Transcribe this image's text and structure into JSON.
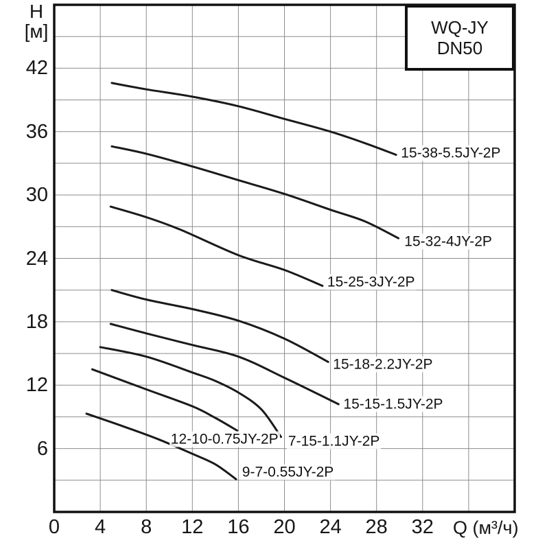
{
  "legend": {
    "line1": "WQ-JY",
    "line2": "DN50"
  },
  "axes": {
    "y_title_line1": "H",
    "y_title_line2": "[м]",
    "x_title": "Q (м³/ч)"
  },
  "colors": {
    "curve": "#1a1a1a",
    "grid": "#8c8c8c",
    "border": "#111111",
    "text": "#161616",
    "background": "#ffffff"
  },
  "chart_data": {
    "type": "line",
    "title": "WQ-JY DN50",
    "xlabel": "Q (м³/ч)",
    "ylabel": "H [м]",
    "xlim": [
      0,
      40
    ],
    "ylim": [
      0,
      48
    ],
    "x_ticks": [
      0,
      4,
      8,
      12,
      16,
      20,
      24,
      28,
      32
    ],
    "y_ticks": [
      6,
      12,
      18,
      24,
      30,
      36,
      42
    ],
    "x_grid_step": 4,
    "y_grid_step": 3,
    "grid": true,
    "legend_position": "top-right",
    "series": [
      {
        "name": "15-38-5.5JY-2P",
        "points": [
          [
            5,
            40.6
          ],
          [
            8,
            40.0
          ],
          [
            12,
            39.3
          ],
          [
            16,
            38.4
          ],
          [
            20,
            37.2
          ],
          [
            24,
            36.0
          ],
          [
            27,
            34.9
          ],
          [
            29.7,
            33.8
          ]
        ],
        "label_at": [
          30.0,
          34.0
        ]
      },
      {
        "name": "15-32-4JY-2P",
        "points": [
          [
            5,
            34.6
          ],
          [
            8,
            33.9
          ],
          [
            12,
            32.7
          ],
          [
            16,
            31.4
          ],
          [
            20,
            30.1
          ],
          [
            24,
            28.6
          ],
          [
            27,
            27.5
          ],
          [
            29.9,
            25.9
          ]
        ],
        "label_at": [
          30.3,
          25.6
        ]
      },
      {
        "name": "15-25-3JY-2P",
        "points": [
          [
            4.9,
            28.9
          ],
          [
            8,
            27.9
          ],
          [
            11,
            26.7
          ],
          [
            16,
            24.3
          ],
          [
            20,
            22.9
          ],
          [
            23.3,
            21.4
          ]
        ],
        "label_at": [
          23.6,
          21.75
        ]
      },
      {
        "name": "15-18-2.2JY-2P",
        "points": [
          [
            5,
            21.0
          ],
          [
            8,
            20.1
          ],
          [
            12,
            19.2
          ],
          [
            16,
            18.1
          ],
          [
            20,
            16.4
          ],
          [
            23.8,
            14.2
          ]
        ],
        "label_at": [
          24.1,
          14.0
        ]
      },
      {
        "name": "15-15-1.5JY-2P",
        "points": [
          [
            4.9,
            17.8
          ],
          [
            8,
            16.9
          ],
          [
            12,
            15.8
          ],
          [
            16,
            14.7
          ],
          [
            20,
            12.7
          ],
          [
            24.7,
            10.2
          ]
        ],
        "label_at": [
          25.0,
          10.2
        ]
      },
      {
        "name": "7-15-1.1JY-2P",
        "points": [
          [
            4,
            15.6
          ],
          [
            8,
            14.7
          ],
          [
            12,
            13.2
          ],
          [
            14,
            12.4
          ],
          [
            16,
            11.3
          ],
          [
            18,
            9.7
          ],
          [
            19.7,
            7.1
          ]
        ],
        "label_at": [
          20.2,
          6.7
        ]
      },
      {
        "name": "12-10-0.75JY-2P",
        "points": [
          [
            3.3,
            13.5
          ],
          [
            8,
            11.6
          ],
          [
            12,
            10.0
          ],
          [
            14,
            8.9
          ],
          [
            15.9,
            7.7
          ]
        ],
        "label_at": [
          10.0,
          6.9
        ]
      },
      {
        "name": "9-7-0.55JY-2P",
        "points": [
          [
            2.8,
            9.3
          ],
          [
            6,
            8.1
          ],
          [
            9,
            6.9
          ],
          [
            12,
            5.5
          ],
          [
            14,
            4.5
          ],
          [
            15.8,
            3.1
          ]
        ],
        "label_at": [
          16.2,
          3.8
        ]
      }
    ]
  }
}
